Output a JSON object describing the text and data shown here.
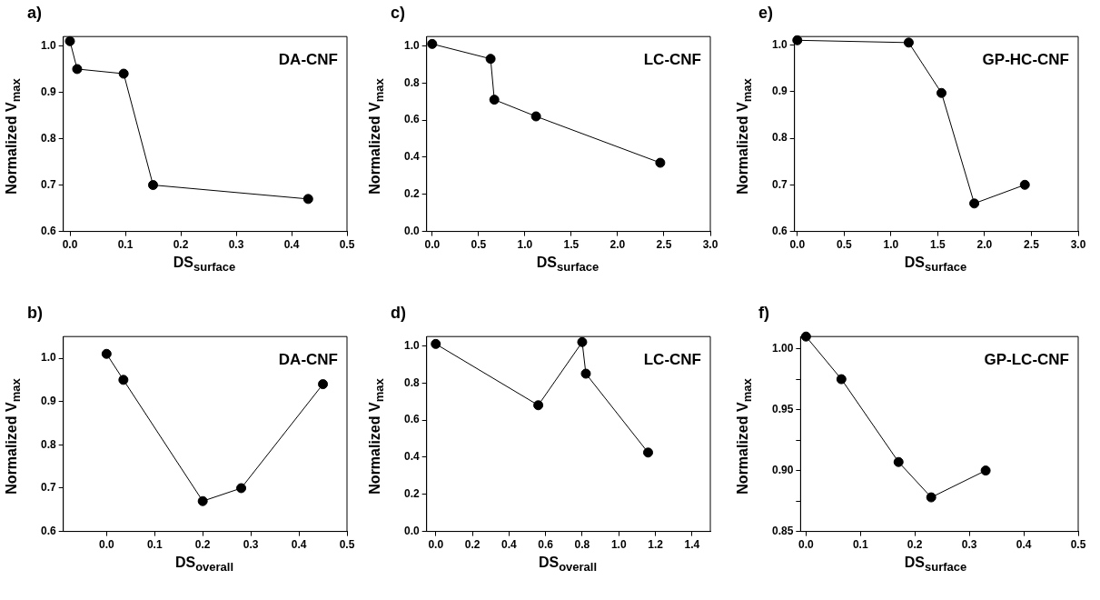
{
  "chart_data": [
    {
      "type": "line",
      "title": "a)",
      "xlabel": "DS$_{surface}$",
      "ylabel": "Normalized V$_{max}$",
      "annotations": [
        "DA-CNF"
      ],
      "color": "#000000",
      "marker": "circle",
      "line_style": "solid",
      "grid": false,
      "x": [
        0,
        0.013,
        0.097,
        0.15,
        0.43
      ],
      "values": [
        1.01,
        0.95,
        0.94,
        0.7,
        0.67
      ],
      "xlim": [
        -0.012,
        0.5
      ],
      "xticks": [
        {
          "value": 0,
          "label": "0.0"
        },
        0.1,
        0.2,
        0.3,
        0.4,
        0.5
      ],
      "ylim": [
        0.6,
        1.02
      ],
      "yticks": [
        0.6,
        0.7,
        0.8,
        0.9,
        {
          "value": 1,
          "label": "1.0"
        }
      ]
    },
    {
      "type": "line",
      "title": "c)",
      "xlabel": "DS$_{surface}$",
      "ylabel": "Normalized V$_{max}$",
      "annotations": [
        "LC-CNF"
      ],
      "color": "#000000",
      "marker": "circle",
      "line_style": "solid",
      "grid": false,
      "x": [
        0,
        0.63,
        0.67,
        1.12,
        2.46
      ],
      "values": [
        1.01,
        0.93,
        0.71,
        0.62,
        0.37
      ],
      "xlim": [
        -0.06,
        3
      ],
      "xticks": [
        {
          "value": 0,
          "label": "0.0"
        },
        0.5,
        {
          "value": 1,
          "label": "1.0"
        },
        1.5,
        {
          "value": 2,
          "label": "2.0"
        },
        2.5,
        {
          "value": 3,
          "label": "3.0"
        }
      ],
      "ylim": [
        0,
        1.05
      ],
      "yticks": [
        {
          "value": 0,
          "label": "0.0"
        },
        0.2,
        0.4,
        0.6,
        0.8,
        {
          "value": 1,
          "label": "1.0"
        }
      ]
    },
    {
      "type": "line",
      "title": "e)",
      "xlabel": "DS$_{surface}$",
      "ylabel": "Normalized V$_{max}$",
      "annotations": [
        "GP-HC-CNF"
      ],
      "color": "#000000",
      "marker": "circle",
      "line_style": "solid",
      "grid": false,
      "x": [
        0,
        1.19,
        1.54,
        1.89,
        2.43
      ],
      "values": [
        1.01,
        1.005,
        0.897,
        0.66,
        0.7
      ],
      "xlim": [
        -0.03,
        3
      ],
      "xticks": [
        {
          "value": 0,
          "label": "0.0"
        },
        0.5,
        {
          "value": 1,
          "label": "1.0"
        },
        1.5,
        {
          "value": 2,
          "label": "2.0"
        },
        2.5,
        {
          "value": 3,
          "label": "3.0"
        }
      ],
      "ylim": [
        0.6,
        1.018
      ],
      "yticks": [
        0.6,
        0.7,
        0.8,
        0.9,
        {
          "value": 1,
          "label": "1.0"
        }
      ]
    },
    {
      "type": "line",
      "title": "b)",
      "xlabel": "DS$_{overall}$",
      "ylabel": "Normalized V$_{max}$",
      "annotations": [
        "DA-CNF"
      ],
      "color": "#000000",
      "marker": "circle",
      "line_style": "solid",
      "grid": false,
      "x": [
        0,
        0.035,
        0.2,
        0.28,
        0.45
      ],
      "values": [
        1.01,
        0.95,
        0.67,
        0.7,
        0.94
      ],
      "xlim": [
        -0.09,
        0.5
      ],
      "xticks": [
        {
          "value": 0,
          "label": "0.0"
        },
        0.1,
        0.2,
        0.3,
        0.4,
        0.5
      ],
      "ylim": [
        0.6,
        1.05
      ],
      "yticks": [
        0.6,
        0.7,
        0.8,
        0.9,
        {
          "value": 1,
          "label": "1.0"
        }
      ]
    },
    {
      "type": "line",
      "title": "d)",
      "xlabel": "DS$_{overall}$",
      "ylabel": "Normalized V$_{max}$",
      "annotations": [
        "LC-CNF"
      ],
      "color": "#000000",
      "marker": "circle",
      "line_style": "solid",
      "grid": false,
      "x": [
        0,
        0.56,
        0.8,
        0.82,
        1.16
      ],
      "values": [
        1.01,
        0.68,
        1.02,
        0.85,
        0.425
      ],
      "xlim": [
        -0.05,
        1.5
      ],
      "xticks": [
        {
          "value": 0,
          "label": "0.0"
        },
        0.2,
        0.4,
        0.6,
        0.8,
        {
          "value": 1,
          "label": "1.0"
        },
        1.2,
        1.4
      ],
      "ylim": [
        0,
        1.05
      ],
      "yticks": [
        {
          "value": 0,
          "label": "0.0"
        },
        0.2,
        0.4,
        0.6,
        0.8,
        {
          "value": 1,
          "label": "1.0"
        }
      ]
    },
    {
      "type": "line",
      "title": "f)",
      "xlabel": "DS$_{surface}$",
      "ylabel": "Normalized V$_{max}$",
      "annotations": [
        "GP-LC-CNF"
      ],
      "color": "#000000",
      "marker": "circle",
      "line_style": "solid",
      "grid": false,
      "x": [
        0,
        0.065,
        0.17,
        0.23,
        0.33
      ],
      "values": [
        1.01,
        0.975,
        0.907,
        0.878,
        0.9
      ],
      "xlim": [
        -0.01,
        0.5
      ],
      "xticks": [
        {
          "value": 0,
          "label": "0.0"
        },
        0.1,
        0.2,
        0.3,
        0.4,
        0.5
      ],
      "ylim": [
        0.85,
        1.01
      ],
      "yticks": [
        0.85,
        {
          "value": 0.875,
          "label": null
        },
        {
          "value": 0.9,
          "label": "0.90"
        },
        {
          "value": 0.925,
          "label": null
        },
        0.95,
        {
          "value": 0.975,
          "label": null
        },
        {
          "value": 1,
          "label": "1.00"
        }
      ]
    }
  ]
}
